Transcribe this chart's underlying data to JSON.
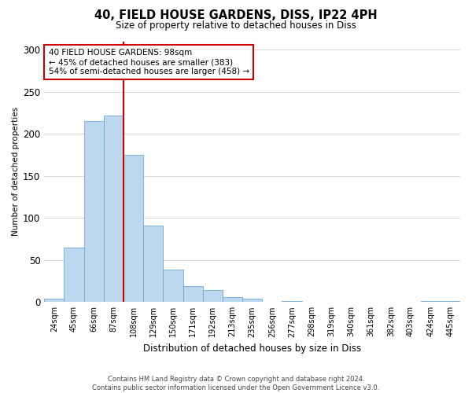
{
  "title_line1": "40, FIELD HOUSE GARDENS, DISS, IP22 4PH",
  "title_line2": "Size of property relative to detached houses in Diss",
  "xlabel": "Distribution of detached houses by size in Diss",
  "ylabel": "Number of detached properties",
  "categories": [
    "24sqm",
    "45sqm",
    "66sqm",
    "87sqm",
    "108sqm",
    "129sqm",
    "150sqm",
    "171sqm",
    "192sqm",
    "213sqm",
    "235sqm",
    "256sqm",
    "277sqm",
    "298sqm",
    "319sqm",
    "340sqm",
    "361sqm",
    "382sqm",
    "403sqm",
    "424sqm",
    "445sqm"
  ],
  "values": [
    4,
    65,
    215,
    222,
    175,
    91,
    39,
    19,
    14,
    6,
    4,
    0,
    1,
    0,
    0,
    0,
    0,
    0,
    0,
    1,
    1
  ],
  "bar_color": "#bdd7ee",
  "bar_edgecolor": "#70a8d4",
  "annotation_line1": "40 FIELD HOUSE GARDENS: 98sqm",
  "annotation_line2": "← 45% of detached houses are smaller (383)",
  "annotation_line3": "54% of semi-detached houses are larger (458) →",
  "red_line_color": "#cc0000",
  "annotation_box_edgecolor": "#cc0000",
  "footer_line1": "Contains HM Land Registry data © Crown copyright and database right 2024.",
  "footer_line2": "Contains public sector information licensed under the Open Government Licence v3.0.",
  "ylim": [
    0,
    310
  ],
  "yticks": [
    0,
    50,
    100,
    150,
    200,
    250,
    300
  ],
  "background_color": "#ffffff",
  "grid_color": "#d0d0d0",
  "red_line_x": 3.5
}
